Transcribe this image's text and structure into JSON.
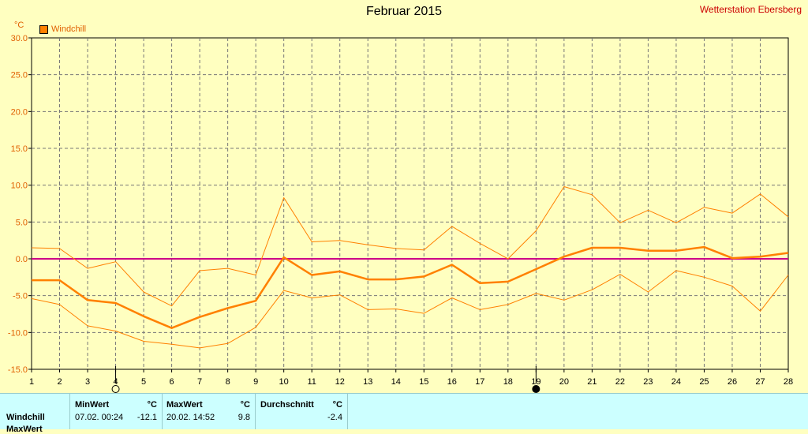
{
  "header": {
    "title": "Februar 2015",
    "station": "Wetterstation Ebersberg",
    "unit": "°C",
    "legend": "Windchill"
  },
  "colors": {
    "background": "#ffffc0",
    "series": "#ff8000",
    "zero_line": "#cc0088",
    "grid": "#777777"
  },
  "chart_data": {
    "type": "line",
    "title": "Februar 2015",
    "ylabel": "°C",
    "ylim": [
      -15,
      30
    ],
    "yticks": [
      "30.0",
      "25.0",
      "20.0",
      "15.0",
      "10.0",
      "5.0",
      "0.0",
      "-5.0",
      "-10.0",
      "-15.0"
    ],
    "x": [
      1,
      2,
      3,
      4,
      5,
      6,
      7,
      8,
      9,
      10,
      11,
      12,
      13,
      14,
      15,
      16,
      17,
      18,
      19,
      20,
      21,
      22,
      23,
      24,
      25,
      26,
      27,
      28
    ],
    "xtick_labels": [
      "1",
      "2",
      "3",
      "4",
      "5",
      "6",
      "7",
      "8",
      "9",
      "10",
      "11",
      "12",
      "13",
      "14",
      "15",
      "16",
      "17",
      "18",
      "19",
      "20",
      "21",
      "22",
      "23",
      "24",
      "25",
      "26",
      "27",
      "28"
    ],
    "grid": true,
    "series": [
      {
        "name": "Windchill",
        "role": "avg",
        "values": [
          -2.9,
          -2.9,
          -5.6,
          -6.0,
          -7.8,
          -9.4,
          -7.9,
          -6.7,
          -5.7,
          0.2,
          -2.2,
          -1.7,
          -2.8,
          -2.8,
          -2.4,
          -0.8,
          -3.3,
          -3.1,
          -1.4,
          0.3,
          1.5,
          1.5,
          1.1,
          1.1,
          1.6,
          0.1,
          0.3,
          0.8
        ]
      },
      {
        "role": "max",
        "values": [
          1.5,
          1.4,
          -1.3,
          -0.4,
          -4.5,
          -6.4,
          -1.6,
          -1.3,
          -2.2,
          8.3,
          2.3,
          2.5,
          1.9,
          1.4,
          1.2,
          4.4,
          2.1,
          0.0,
          3.8,
          9.8,
          8.7,
          4.9,
          6.6,
          4.9,
          7.0,
          6.2,
          8.8,
          5.7
        ]
      },
      {
        "role": "min",
        "values": [
          -5.4,
          -6.2,
          -9.1,
          -9.8,
          -11.2,
          -11.6,
          -12.1,
          -11.5,
          -9.3,
          -4.3,
          -5.3,
          -4.9,
          -6.9,
          -6.8,
          -7.4,
          -5.3,
          -6.9,
          -6.2,
          -4.7,
          -5.6,
          -4.2,
          -2.1,
          -4.5,
          -1.6,
          -2.5,
          -3.7,
          -7.1,
          -2.2
        ]
      }
    ],
    "markers": [
      {
        "x": 4,
        "symbol": "open-circle"
      },
      {
        "x": 19,
        "symbol": "filled-circle"
      }
    ]
  },
  "stats": {
    "row_label": "Windchill",
    "min_header": "MinWert",
    "max_header": "MaxWert",
    "avg_header": "Durchschnitt",
    "unit": "°C",
    "min_date": "07.02.  00:24",
    "min_value": "-12.1",
    "max_date": "20.02.  14:52",
    "max_value": "9.8",
    "avg_value": "-2.4",
    "row2_label": "MaxWert"
  }
}
